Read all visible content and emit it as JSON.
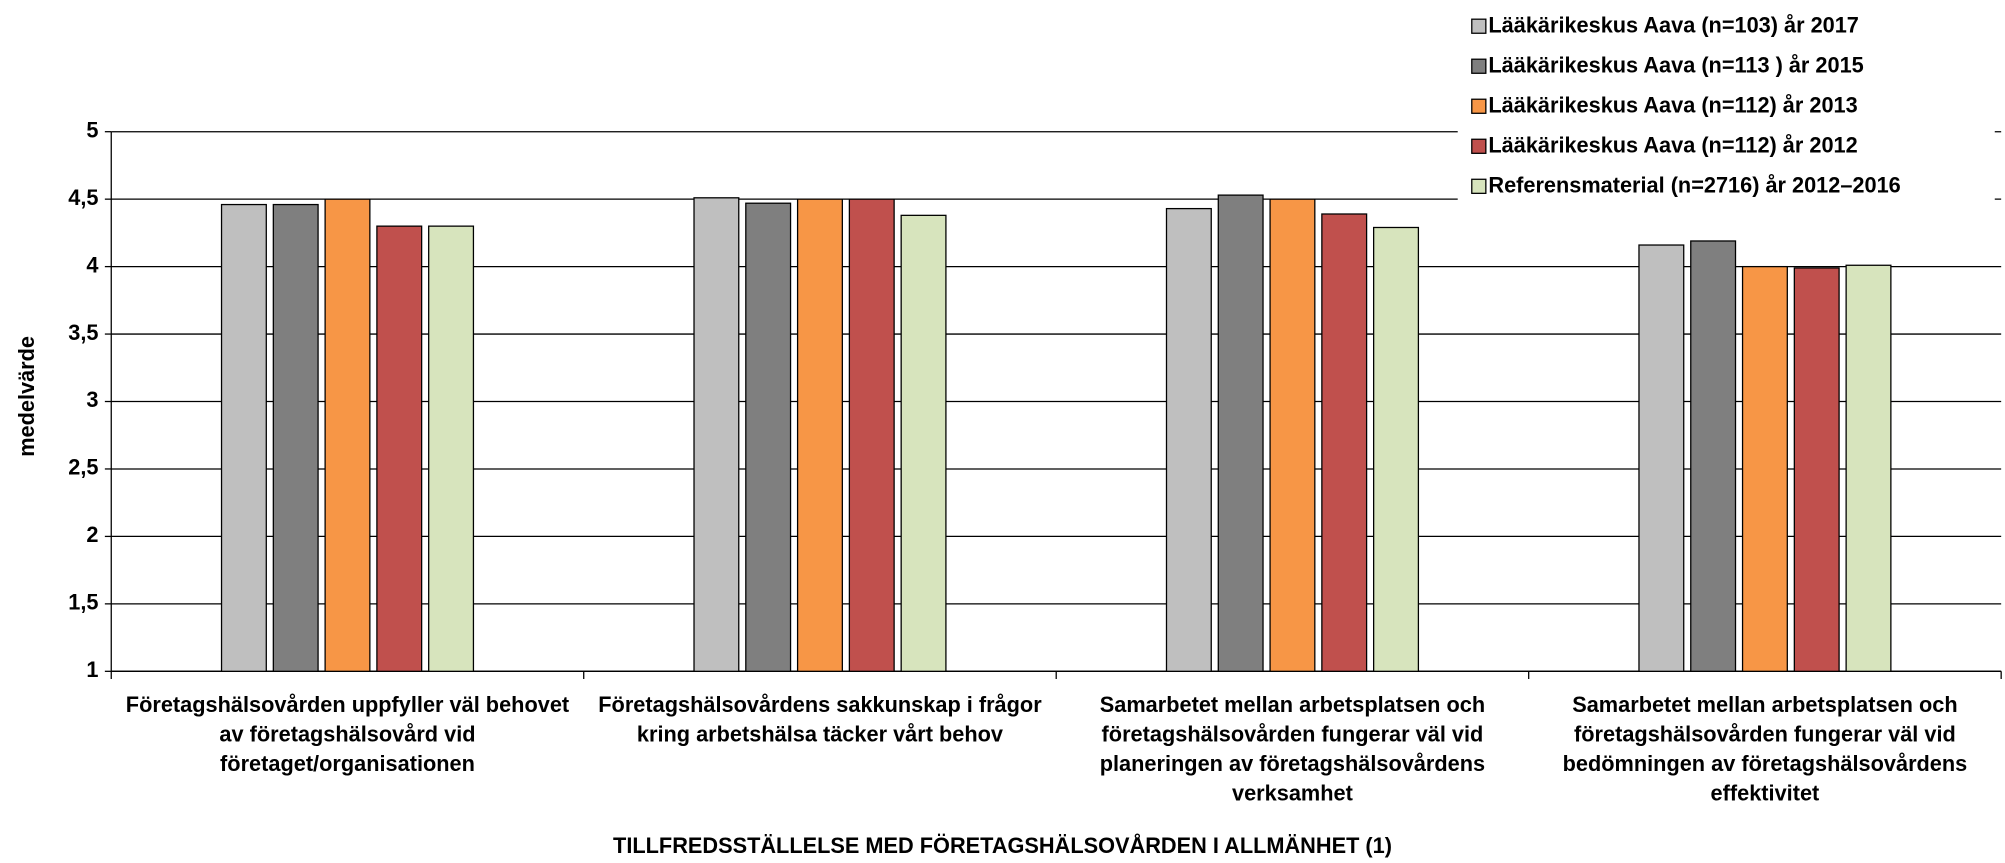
{
  "chart_data": {
    "type": "bar",
    "ylabel": "medelvärde",
    "xlabel": "TILLFREDSSTÄLLELSE MED FÖRETAGSHÄLSOVÅRDEN I ALLMÄNHET (1)",
    "categories": [
      "Företagshälsovården uppfyller väl behovet av företagshälsovård vid företaget/organisationen",
      "Företagshälsovårdens sakkunskap i frågor kring arbetshälsa täcker vårt behov",
      "Samarbetet mellan arbetsplatsen och företagshälsovården fungerar väl vid planeringen av företagshälsovårdens verksamhet",
      "Samarbetet mellan arbetsplatsen och företagshälsovården fungerar väl vid bedömningen av företagshälsovårdens effektivitet"
    ],
    "series": [
      {
        "name": "Lääkärikeskus Aava (n=103)  år 2017",
        "color": "#bfbfbf",
        "values": [
          4.46,
          4.51,
          4.43,
          4.16
        ]
      },
      {
        "name": "Lääkärikeskus Aava (n=113 ) år 2015",
        "color": "#7f7f7f",
        "values": [
          4.46,
          4.47,
          4.53,
          4.19
        ]
      },
      {
        "name": "Lääkärikeskus Aava (n=112)  år 2013",
        "color": "#f79646",
        "values": [
          4.5,
          4.5,
          4.5,
          4.0
        ]
      },
      {
        "name": "Lääkärikeskus Aava (n=112)  år 2012",
        "color": "#c0504d",
        "values": [
          4.3,
          4.5,
          4.39,
          3.99
        ]
      },
      {
        "name": "Referensmaterial (n=2716)  år 2012–2016",
        "color": "#d7e4bd",
        "values": [
          4.3,
          4.38,
          4.29,
          4.01
        ]
      }
    ],
    "ylim": [
      1,
      5
    ],
    "yticks": [
      1,
      {
        "value": 1.5,
        "label": "1,5"
      },
      2,
      {
        "value": 2.5,
        "label": "2,5"
      },
      3,
      {
        "value": 3.5,
        "label": "3,5"
      },
      4,
      {
        "value": 4.5,
        "label": "4,5"
      },
      5
    ],
    "grid": true,
    "legend": "top-right"
  }
}
